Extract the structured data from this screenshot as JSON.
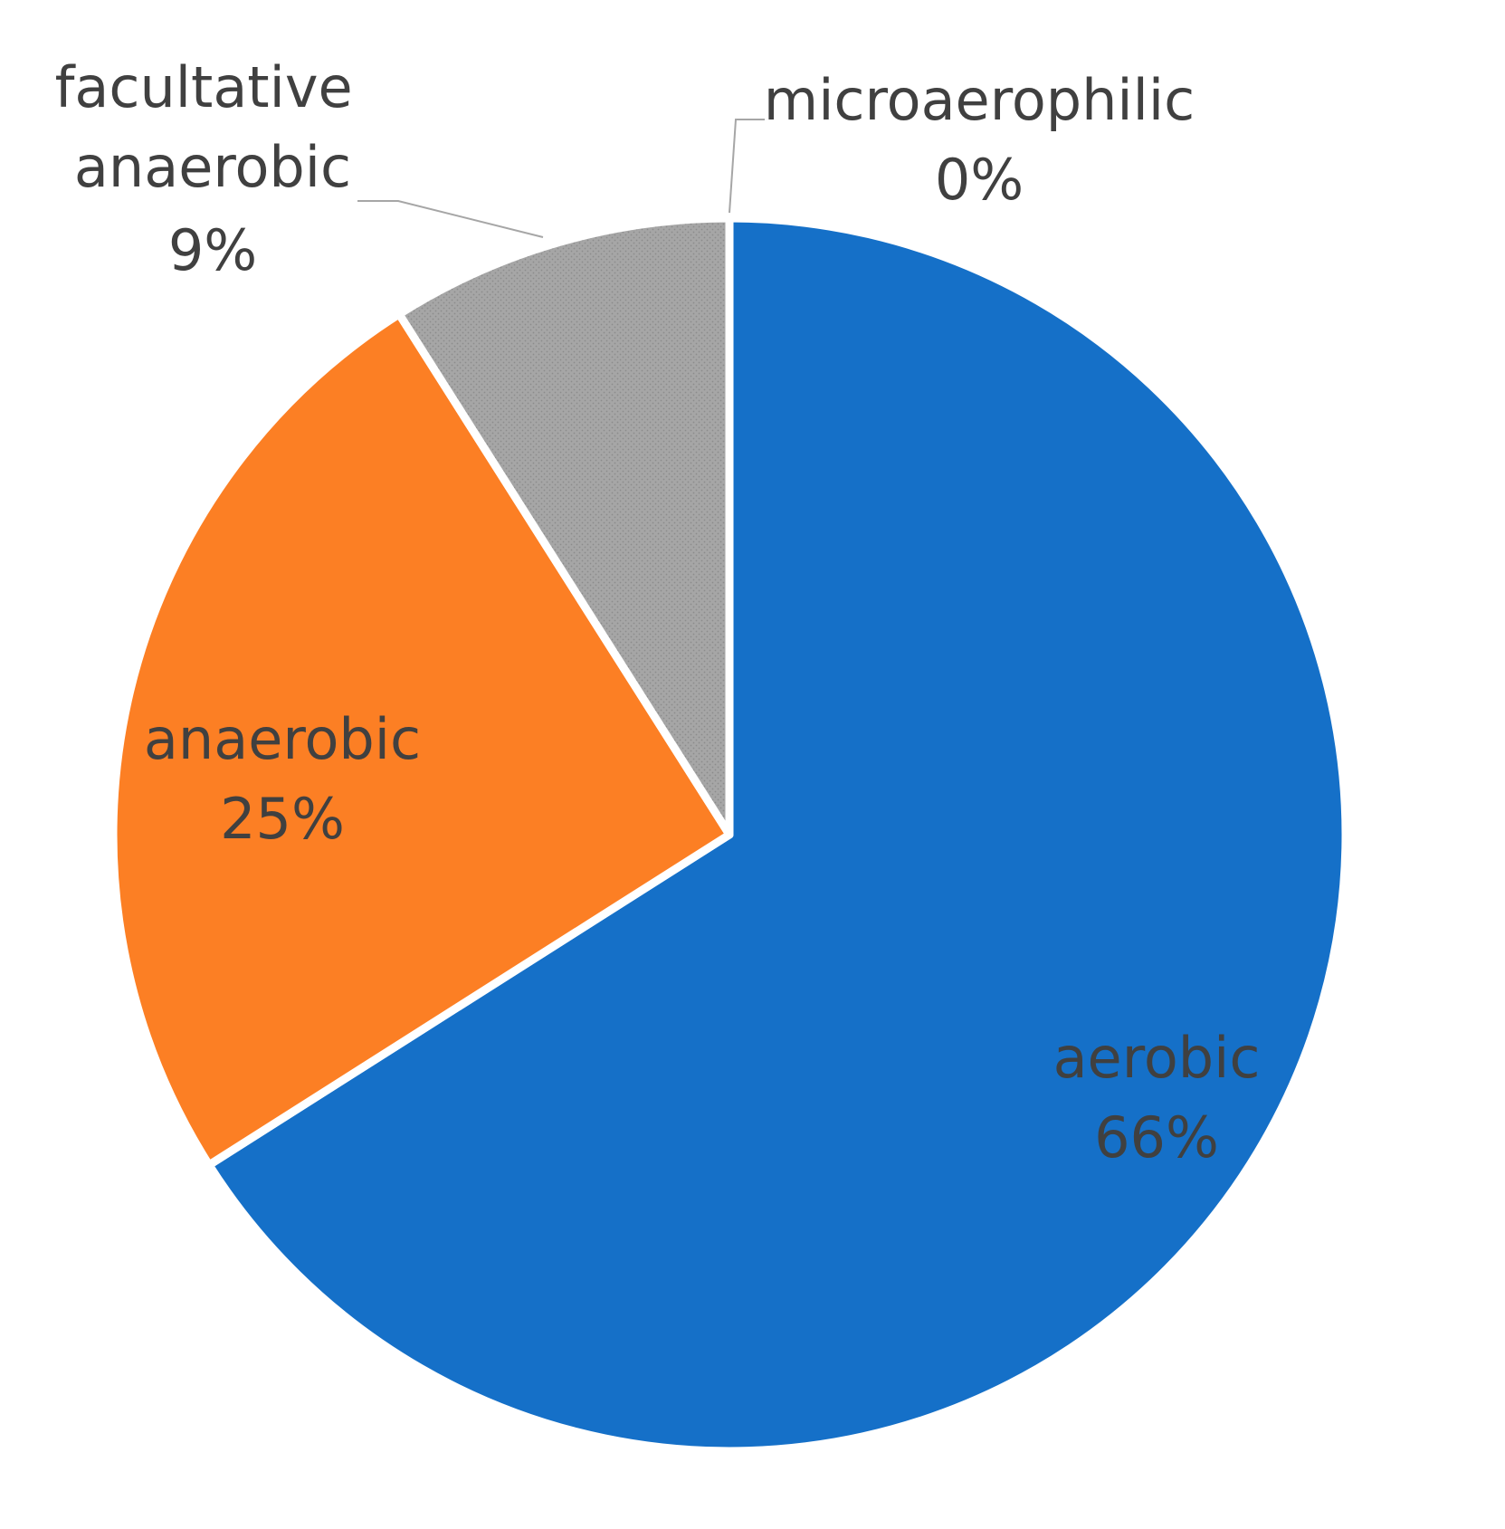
{
  "chart_data": {
    "type": "pie",
    "title": "",
    "legend": "none",
    "start_angle_deg": 0,
    "direction": "clockwise",
    "slices": [
      {
        "label": "aerobic",
        "value": 66,
        "display": "66%",
        "color": "#1570C8"
      },
      {
        "label": "anaerobic",
        "value": 25,
        "display": "25%",
        "color": "#FC7F24"
      },
      {
        "label": "facultative anaerobic",
        "value": 9,
        "display": "9%",
        "color": "#A6A6A6",
        "pattern": "dotted"
      },
      {
        "label": "microaerophilic",
        "value": 0,
        "display": "0%",
        "color": "#FFC000"
      }
    ]
  }
}
